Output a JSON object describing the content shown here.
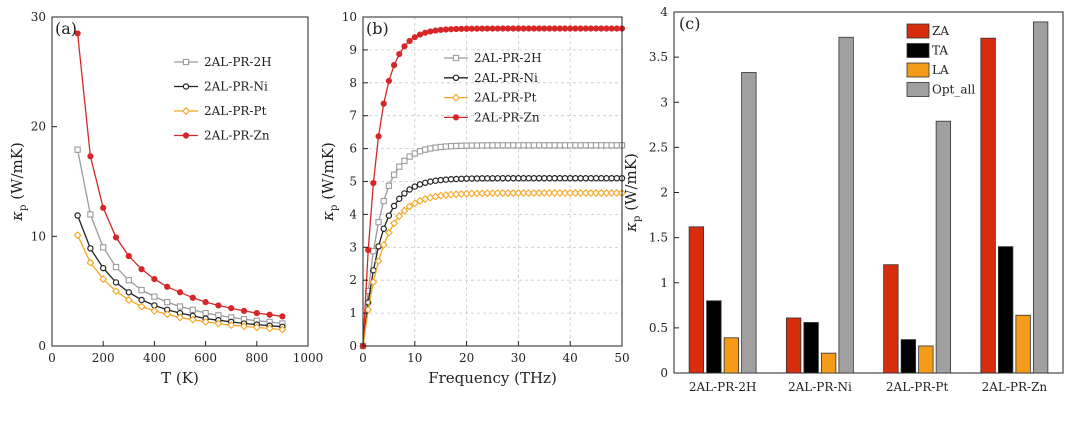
{
  "chart_data": [
    {
      "type": "line",
      "panel_label": "(a)",
      "xlabel": "T (K)",
      "ylabel": "κp (W/mK)",
      "xlim": [
        0,
        1000
      ],
      "ylim": [
        0,
        30
      ],
      "xticks": [
        0,
        200,
        400,
        600,
        800,
        1000
      ],
      "yticks": [
        0,
        10,
        20,
        30
      ],
      "legend_position": "top-right",
      "series": [
        {
          "name": "2AL-PR-2H",
          "color": "#9b9b9b",
          "marker": "square",
          "x": [
            100,
            150,
            200,
            250,
            300,
            350,
            400,
            450,
            500,
            550,
            600,
            650,
            700,
            750,
            800,
            850,
            900
          ],
          "y": [
            17.9,
            12.0,
            9.0,
            7.2,
            6.0,
            5.1,
            4.5,
            4.0,
            3.6,
            3.3,
            3.0,
            2.8,
            2.6,
            2.45,
            2.3,
            2.2,
            2.05
          ]
        },
        {
          "name": "2AL-PR-Ni",
          "color": "#222222",
          "marker": "circle",
          "x": [
            100,
            150,
            200,
            250,
            300,
            350,
            400,
            450,
            500,
            550,
            600,
            650,
            700,
            750,
            800,
            850,
            900
          ],
          "y": [
            11.9,
            8.9,
            7.1,
            5.8,
            4.9,
            4.2,
            3.7,
            3.3,
            3.0,
            2.75,
            2.5,
            2.35,
            2.2,
            2.05,
            1.95,
            1.85,
            1.75
          ]
        },
        {
          "name": "2AL-PR-Pt",
          "color": "#f5a623",
          "marker": "diamond",
          "x": [
            100,
            150,
            200,
            250,
            300,
            350,
            400,
            450,
            500,
            550,
            600,
            650,
            700,
            750,
            800,
            850,
            900
          ],
          "y": [
            10.1,
            7.6,
            6.1,
            5.0,
            4.2,
            3.6,
            3.2,
            2.9,
            2.6,
            2.4,
            2.2,
            2.05,
            1.9,
            1.8,
            1.7,
            1.6,
            1.5
          ]
        },
        {
          "name": "2AL-PR-Zn",
          "color": "#d62728",
          "marker": "circle-filled",
          "x": [
            100,
            150,
            200,
            250,
            300,
            350,
            400,
            450,
            500,
            550,
            600,
            650,
            700,
            750,
            800,
            850,
            900
          ],
          "y": [
            28.5,
            17.3,
            12.6,
            9.9,
            8.2,
            7.0,
            6.1,
            5.4,
            4.9,
            4.4,
            4.0,
            3.7,
            3.45,
            3.2,
            3.0,
            2.85,
            2.7
          ]
        }
      ]
    },
    {
      "type": "line",
      "panel_label": "(b)",
      "xlabel": "Frequency (THz)",
      "ylabel": "κp (W/mK)",
      "xlim": [
        0,
        50
      ],
      "ylim": [
        0,
        10
      ],
      "xticks": [
        0,
        10,
        20,
        30,
        40,
        50
      ],
      "yticks": [
        0,
        1,
        2,
        3,
        4,
        5,
        6,
        7,
        8,
        9,
        10
      ],
      "grid": true,
      "legend_position": "top-center",
      "series": [
        {
          "name": "2AL-PR-2H",
          "color": "#9b9b9b",
          "marker": "square",
          "asymptote": 6.1,
          "rate": 0.32
        },
        {
          "name": "2AL-PR-Ni",
          "color": "#222222",
          "marker": "circle",
          "asymptote": 5.1,
          "rate": 0.3
        },
        {
          "name": "2AL-PR-Pt",
          "color": "#f5a623",
          "marker": "diamond",
          "asymptote": 4.65,
          "rate": 0.27
        },
        {
          "name": "2AL-PR-Zn",
          "color": "#d62728",
          "marker": "circle-filled",
          "asymptote": 9.65,
          "rate": 0.36
        }
      ]
    },
    {
      "type": "bar",
      "panel_label": "(c)",
      "xlabel": "",
      "ylabel": "κp (W/mK)",
      "ylim": [
        0,
        4
      ],
      "yticks": [
        "0",
        "0.5",
        "1",
        "1.5",
        "2",
        "2.5",
        "3",
        "3.5",
        "4"
      ],
      "categories": [
        "2AL-PR-2H",
        "2AL-PR-Ni",
        "2AL-PR-Pt",
        "2AL-PR-Zn"
      ],
      "legend_position": "top-center",
      "series": [
        {
          "name": "ZA",
          "color": "#d62d0f",
          "values": [
            1.62,
            0.61,
            1.2,
            3.71
          ]
        },
        {
          "name": "TA",
          "color": "#000000",
          "values": [
            0.8,
            0.56,
            0.37,
            1.4
          ]
        },
        {
          "name": "LA",
          "color": "#f59b1a",
          "values": [
            0.39,
            0.22,
            0.3,
            0.64
          ]
        },
        {
          "name": "Opt_all",
          "color": "#a0a0a0",
          "values": [
            3.33,
            3.72,
            2.79,
            3.89
          ]
        }
      ]
    }
  ]
}
